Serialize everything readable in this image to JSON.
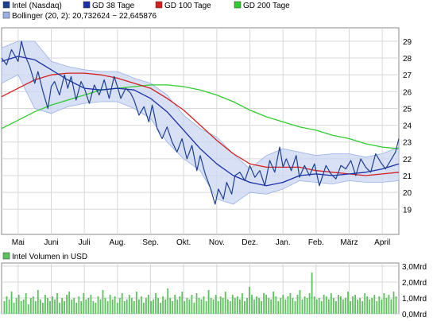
{
  "legend": {
    "items": [
      {
        "label": "Intel (Nasdaq)",
        "color": "#1f3f8f",
        "key": "price"
      },
      {
        "label": "GD 38 Tage",
        "color": "#1a2fa8",
        "key": "gd38"
      },
      {
        "label": "GD 100 Tage",
        "color": "#d42020",
        "key": "gd100"
      },
      {
        "label": "GD 200 Tage",
        "color": "#2ecc2e",
        "key": "gd200"
      },
      {
        "label": "Bollinger (20, 2): 20,732624 − 22,645876",
        "color": "#9ab0e6",
        "key": "bollinger"
      }
    ]
  },
  "volume_legend": {
    "label": "Intel Volumen in USD",
    "color": "#5cc25c"
  },
  "chart_data": [
    {
      "type": "line",
      "title": "",
      "x_tick_labels": [
        "Mai",
        "Juni",
        "Juli",
        "Aug.",
        "Sep.",
        "Okt.",
        "Nov.",
        "Dez.",
        "Jan.",
        "Feb.",
        "März",
        "April"
      ],
      "x_tick_pos": [
        0.5,
        1.5,
        2.5,
        3.5,
        4.5,
        5.5,
        6.5,
        7.5,
        8.5,
        9.5,
        10.5,
        11.5
      ],
      "ylim": [
        17.5,
        29.8
      ],
      "y_ticks": [
        19,
        20,
        21,
        22,
        23,
        24,
        25,
        26,
        27,
        28,
        29
      ],
      "grid": true,
      "series": [
        {
          "name": "Intel (Nasdaq)",
          "color": "#1f3f8f",
          "x": [
            0,
            0.15,
            0.3,
            0.5,
            0.6,
            0.7,
            0.85,
            1.0,
            1.1,
            1.25,
            1.4,
            1.5,
            1.6,
            1.75,
            1.9,
            2.0,
            2.1,
            2.25,
            2.4,
            2.5,
            2.65,
            2.8,
            2.95,
            3.1,
            3.25,
            3.4,
            3.5,
            3.6,
            3.75,
            3.9,
            4.0,
            4.15,
            4.3,
            4.45,
            4.55,
            4.7,
            4.85,
            5.0,
            5.15,
            5.3,
            5.45,
            5.6,
            5.75,
            5.9,
            6.0,
            6.15,
            6.3,
            6.45,
            6.55,
            6.7,
            6.8,
            6.95,
            7.05,
            7.2,
            7.35,
            7.5,
            7.65,
            7.8,
            7.95,
            8.1,
            8.25,
            8.4,
            8.5,
            8.6,
            8.75,
            8.9,
            9.0,
            9.15,
            9.3,
            9.45,
            9.6,
            9.7,
            9.8,
            9.95,
            10.1,
            10.25,
            10.4,
            10.55,
            10.7,
            10.85,
            11.0,
            11.15,
            11.3,
            11.45,
            11.6,
            11.75,
            11.9,
            12.0
          ],
          "values": [
            28.0,
            27.6,
            28.5,
            27.8,
            29.0,
            28.2,
            27.5,
            26.5,
            27.2,
            26.0,
            25.0,
            26.3,
            26.6,
            25.8,
            27.0,
            26.2,
            26.9,
            25.5,
            26.6,
            26.2,
            25.3,
            26.4,
            25.8,
            26.7,
            25.6,
            26.9,
            26.3,
            25.6,
            26.2,
            25.9,
            25.5,
            24.6,
            25.1,
            24.2,
            25.2,
            23.8,
            23.2,
            23.9,
            23.0,
            22.4,
            23.2,
            22.0,
            22.8,
            21.3,
            22.2,
            21.1,
            20.3,
            19.3,
            20.2,
            19.6,
            20.6,
            19.9,
            21.0,
            21.2,
            20.7,
            21.6,
            20.9,
            21.3,
            20.4,
            21.9,
            21.2,
            22.7,
            21.5,
            22.0,
            21.3,
            22.2,
            20.9,
            21.6,
            21.0,
            21.7,
            20.4,
            21.0,
            21.6,
            21.1,
            20.8,
            21.6,
            21.4,
            21.9,
            21.0,
            22.0,
            21.5,
            21.2,
            22.3,
            21.8,
            21.4,
            21.9,
            22.4,
            23.2
          ]
        },
        {
          "name": "GD 38 Tage",
          "color": "#1a2fa8",
          "x": [
            0,
            0.5,
            1.0,
            1.5,
            2.0,
            2.5,
            3.0,
            3.5,
            4.0,
            4.5,
            5.0,
            5.5,
            6.0,
            6.5,
            7.0,
            7.5,
            8.0,
            8.5,
            9.0,
            9.5,
            10.0,
            10.5,
            11.0,
            11.5,
            12.0
          ],
          "values": [
            27.8,
            28.1,
            27.9,
            27.3,
            26.7,
            26.2,
            26.1,
            26.2,
            26.1,
            25.6,
            24.8,
            23.7,
            22.6,
            21.7,
            21.0,
            20.6,
            20.4,
            20.6,
            21.0,
            21.1,
            21.0,
            21.1,
            21.2,
            21.4,
            21.7
          ]
        },
        {
          "name": "GD 100 Tage",
          "color": "#d42020",
          "x": [
            0,
            0.5,
            1.0,
            1.5,
            2.0,
            2.5,
            3.0,
            3.5,
            4.0,
            4.5,
            5.0,
            5.5,
            6.0,
            6.5,
            7.0,
            7.5,
            8.0,
            8.5,
            9.0,
            9.5,
            10.0,
            10.5,
            11.0,
            11.5,
            12.0
          ],
          "values": [
            25.7,
            26.2,
            26.7,
            27.0,
            27.1,
            27.1,
            27.0,
            26.8,
            26.5,
            26.2,
            25.6,
            24.9,
            24.0,
            23.1,
            22.3,
            21.7,
            21.5,
            21.5,
            21.5,
            21.3,
            21.2,
            21.1,
            21.0,
            21.1,
            21.2
          ]
        },
        {
          "name": "GD 200 Tage",
          "color": "#2ecc2e",
          "x": [
            0,
            0.5,
            1.0,
            1.5,
            2.0,
            2.5,
            3.0,
            3.5,
            4.0,
            4.5,
            5.0,
            5.5,
            6.0,
            6.5,
            7.0,
            7.5,
            8.0,
            8.5,
            9.0,
            9.5,
            10.0,
            10.5,
            11.0,
            11.5,
            12.0
          ],
          "values": [
            23.8,
            24.3,
            24.8,
            25.2,
            25.5,
            25.8,
            26.1,
            26.2,
            26.3,
            26.4,
            26.4,
            26.3,
            26.1,
            25.8,
            25.4,
            24.9,
            24.5,
            24.2,
            23.9,
            23.7,
            23.4,
            23.2,
            22.9,
            22.7,
            22.6
          ]
        },
        {
          "name": "Bollinger (20, 2)",
          "color": "#9ab0e6",
          "band": true,
          "x": [
            0,
            0.5,
            1.0,
            1.5,
            2.0,
            2.5,
            3.0,
            3.5,
            4.0,
            4.5,
            5.0,
            5.5,
            6.0,
            6.5,
            7.0,
            7.5,
            8.0,
            8.5,
            9.0,
            9.5,
            10.0,
            10.5,
            11.0,
            11.5,
            12.0
          ],
          "upper": [
            28.6,
            29.0,
            29.0,
            27.8,
            27.5,
            27.3,
            27.2,
            27.2,
            26.8,
            26.5,
            25.8,
            24.6,
            23.8,
            23.3,
            22.3,
            21.4,
            22.2,
            22.6,
            22.4,
            22.2,
            22.3,
            22.3,
            22.1,
            22.3,
            22.7
          ],
          "lower": [
            26.5,
            27.0,
            25.0,
            24.7,
            25.1,
            25.3,
            25.4,
            25.4,
            25.0,
            24.4,
            23.0,
            22.0,
            21.3,
            19.6,
            19.3,
            20.0,
            19.9,
            20.2,
            20.7,
            20.6,
            20.5,
            20.7,
            20.6,
            20.6,
            20.7
          ]
        }
      ]
    },
    {
      "type": "bar",
      "title": "Intel Volumen in USD",
      "ylim": [
        0,
        3.2
      ],
      "y_ticks": [
        0,
        1,
        2,
        3
      ],
      "y_tick_labels": [
        "0,0Mrd",
        "1,0Mrd",
        "2,0Mrd",
        "3,0Mrd"
      ],
      "series": [
        {
          "name": "Intel Volumen in USD",
          "color": "#5cc25c",
          "values": [
            0.8,
            1.1,
            0.9,
            1.4,
            0.7,
            1.0,
            1.2,
            0.8,
            0.9,
            1.3,
            0.6,
            1.0,
            1.1,
            0.8,
            1.5,
            0.9,
            0.7,
            1.2,
            1.0,
            0.8,
            1.1,
            0.9,
            1.3,
            0.7,
            1.0,
            0.8,
            1.2,
            1.4,
            0.9,
            1.0,
            0.7,
            1.1,
            0.8,
            1.3,
            0.9,
            1.0,
            1.2,
            0.8,
            0.7,
            1.1,
            0.9,
            1.5,
            1.0,
            0.8,
            1.2,
            0.9,
            1.1,
            0.7,
            1.0,
            1.3,
            0.8,
            0.9,
            1.2,
            1.0,
            0.8,
            1.4,
            0.9,
            1.1,
            0.7,
            1.0,
            1.2,
            0.8,
            0.9,
            1.3,
            1.0,
            0.7,
            1.1,
            0.9,
            1.6,
            1.0,
            0.8,
            1.2,
            0.9,
            1.1,
            1.4,
            0.8,
            1.0,
            0.9,
            1.2,
            0.7,
            1.3,
            1.0,
            0.9,
            1.1,
            0.8,
            1.5,
            1.0,
            0.9,
            1.2,
            0.8,
            1.1,
            1.0,
            1.4,
            0.9,
            0.8,
            1.2,
            1.0,
            1.1,
            0.9,
            1.3,
            0.8,
            1.0,
            1.7,
            1.2,
            0.9,
            1.1,
            1.0,
            0.8,
            1.3,
            1.2,
            1.0,
            0.9,
            1.4,
            1.1,
            0.8,
            1.0,
            1.2,
            0.9,
            1.1,
            1.3,
            1.0,
            0.8,
            1.2,
            1.5,
            0.9,
            1.1,
            1.0,
            1.3,
            2.6,
            1.1,
            0.9,
            1.0,
            0.8,
            1.2,
            1.1,
            0.9,
            1.3,
            1.0,
            0.8,
            1.2,
            1.1,
            0.9,
            1.0,
            1.4,
            0.8,
            1.1,
            1.2,
            0.9,
            1.0,
            0.8,
            1.3,
            1.1,
            0.9,
            1.0,
            1.2,
            0.8,
            1.1,
            0.9,
            1.3,
            1.0,
            1.2,
            0.9,
            1.4,
            1.1
          ]
        }
      ]
    }
  ]
}
